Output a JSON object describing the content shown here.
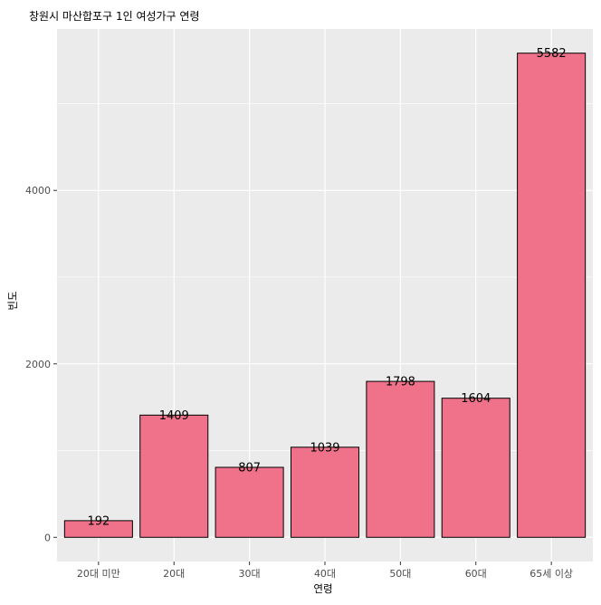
{
  "chart_data": {
    "type": "bar",
    "title": "창원시 마산합포구 1인 여성가구 연령",
    "xlabel": "연령",
    "ylabel": "빈도",
    "categories": [
      "20대 미만",
      "20대",
      "30대",
      "40대",
      "50대",
      "60대",
      "65세 이상"
    ],
    "values": [
      192,
      1409,
      807,
      1039,
      1798,
      1604,
      5582
    ],
    "data_labels": [
      "192",
      "1409",
      "807",
      "1039",
      "1798",
      "1604",
      "5582"
    ],
    "y_ticks": [
      0,
      2000,
      4000
    ],
    "y_tick_labels": [
      "0",
      "2000",
      "4000"
    ],
    "ylim": [
      -279,
      5861
    ],
    "grid": true,
    "colors": {
      "bar_fill": "#F0718A",
      "bar_stroke": "#000000",
      "panel_bg": "#EBEBEB",
      "grid_major": "#FFFFFF",
      "text": "#4D4D4D",
      "title_text": "#000000"
    }
  }
}
